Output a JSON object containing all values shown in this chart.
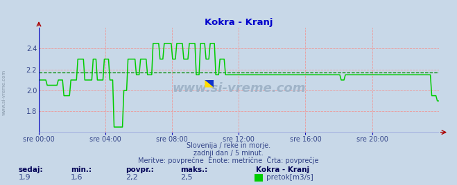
{
  "title": "Kokra - Kranj",
  "title_color": "#0000cc",
  "bg_color": "#c8d8e8",
  "plot_bg_color": "#c8d8e8",
  "grid_color": "#ee9999",
  "avg_line_color": "#008800",
  "avg_value": 2.17,
  "line_color": "#00cc00",
  "axis_color": "#0000bb",
  "tick_color": "#334488",
  "ylim": [
    1.6,
    2.6
  ],
  "yticks": [
    1.8,
    2.0,
    2.2,
    2.4
  ],
  "xtick_labels": [
    "sre 00:00",
    "sre 04:00",
    "sre 08:00",
    "sre 12:00",
    "sre 16:00",
    "sre 20:00"
  ],
  "footer_line1": "Slovenija / reke in morje.",
  "footer_line2": "zadnji dan / 5 minut.",
  "footer_line3": "Meritve: povprečne  Enote: metrične  Črta: povprečje",
  "footer_color": "#334488",
  "stat_labels": [
    "sedaj:",
    "min.:",
    "povpr.:",
    "maks.:"
  ],
  "stat_values": [
    "1,9",
    "1,6",
    "2,2",
    "2,5"
  ],
  "stat_color": "#334488",
  "stat_bold_color": "#000055",
  "legend_label": "Kokra - Kranj",
  "legend_series": "pretok[m3/s]",
  "legend_color": "#00cc00",
  "watermark": "www.si-vreme.com",
  "watermark_color": "#a0b4c8",
  "side_text": "www.si-vreme.com",
  "side_color": "#8899aa",
  "flow_data": [
    2.1,
    2.1,
    2.1,
    2.05,
    2.05,
    2.05,
    2.05,
    2.05,
    2.1,
    2.1,
    1.95,
    1.95,
    1.95,
    2.1,
    2.1,
    2.1,
    2.3,
    2.3,
    2.3,
    2.1,
    2.1,
    2.1,
    2.3,
    2.3,
    2.1,
    2.1,
    2.1,
    2.3,
    2.3,
    2.1,
    2.1,
    1.65,
    1.65,
    1.65,
    1.65,
    2.0,
    2.0,
    2.3,
    2.3,
    2.3,
    2.15,
    2.15,
    2.3,
    2.3,
    2.3,
    2.15,
    2.15,
    2.45,
    2.45,
    2.45,
    2.3,
    2.3,
    2.45,
    2.45,
    2.45,
    2.3,
    2.3,
    2.45,
    2.45,
    2.45,
    2.3,
    2.3,
    2.45,
    2.45,
    2.45,
    2.15,
    2.15,
    2.45,
    2.45,
    2.3,
    2.3,
    2.45,
    2.45,
    2.15,
    2.15,
    2.3,
    2.3,
    2.15,
    2.15,
    2.15,
    2.15,
    2.15,
    2.15,
    2.15,
    2.15,
    2.15,
    2.15,
    2.15,
    2.15,
    2.15,
    2.15,
    2.15,
    2.15,
    2.15,
    2.15,
    2.15,
    2.15,
    2.15,
    2.15,
    2.15,
    2.15,
    2.15,
    2.15,
    2.15,
    2.15,
    2.15,
    2.15,
    2.15,
    2.15,
    2.15,
    2.15,
    2.15,
    2.15,
    2.15,
    2.15,
    2.15,
    2.15,
    2.15,
    2.15,
    2.15,
    2.15,
    2.15,
    2.15,
    2.15,
    2.15,
    2.1,
    2.1,
    2.15,
    2.15,
    2.15,
    2.15,
    2.15,
    2.15,
    2.15,
    2.15,
    2.15,
    2.15,
    2.15,
    2.15,
    2.15,
    2.15,
    2.15,
    2.15,
    2.15,
    2.15,
    2.15,
    2.15,
    2.15,
    2.15,
    2.15,
    2.15,
    2.15,
    2.15,
    2.15,
    2.15,
    2.15,
    2.15,
    2.15,
    2.15,
    2.15,
    2.15,
    2.15,
    2.15,
    1.95,
    1.95,
    1.9,
    1.9
  ]
}
